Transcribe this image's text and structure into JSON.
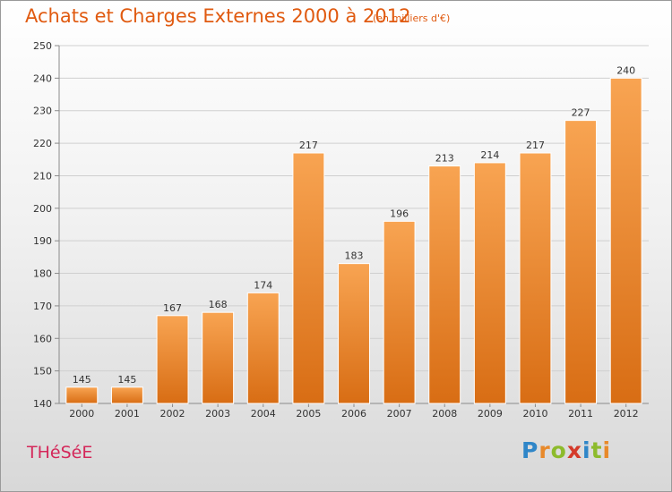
{
  "chart_data": {
    "type": "bar",
    "title": "Achats et Charges Externes 2000 à 2012",
    "subtitle": "(en milliers d'€)",
    "categories": [
      "2000",
      "2001",
      "2002",
      "2003",
      "2004",
      "2005",
      "2006",
      "2007",
      "2008",
      "2009",
      "2010",
      "2011",
      "2012"
    ],
    "values": [
      145,
      145,
      167,
      168,
      174,
      217,
      183,
      196,
      213,
      214,
      217,
      227,
      240
    ],
    "ylim": [
      140,
      250
    ],
    "yticks": [
      140,
      150,
      160,
      170,
      180,
      190,
      200,
      210,
      220,
      230,
      240,
      250
    ],
    "grid": true,
    "data_labels": true,
    "bar_color": "#f0903a",
    "bar_color_dark": "#d86d14"
  },
  "footer": {
    "commune": "THéSéE",
    "logo_letters": [
      {
        "char": "P",
        "color": "#2f86c8"
      },
      {
        "char": "r",
        "color": "#e8892a"
      },
      {
        "char": "o",
        "color": "#8dbb2c"
      },
      {
        "char": "x",
        "color": "#d43a2a"
      },
      {
        "char": "i",
        "color": "#2f86c8"
      },
      {
        "char": "t",
        "color": "#8dbb2c"
      },
      {
        "char": "i",
        "color": "#e8892a"
      }
    ]
  }
}
